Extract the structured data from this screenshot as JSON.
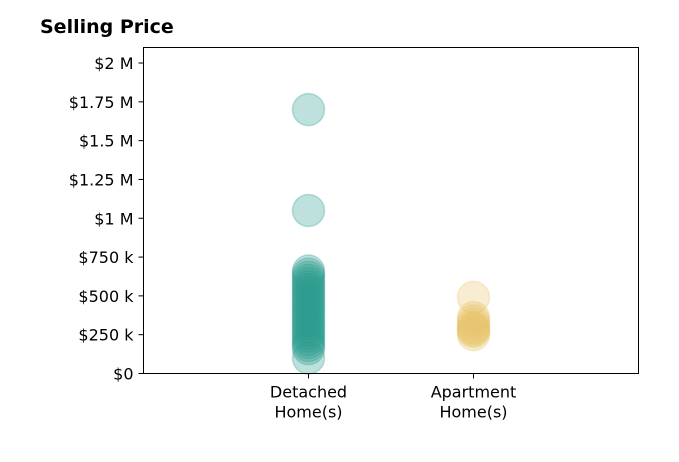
{
  "chart_data": {
    "type": "scatter",
    "title": "Selling Price",
    "xlabel": "",
    "ylabel": "",
    "categories": [
      [
        "Detached",
        "Home(s)"
      ],
      [
        "Apartment",
        "Home(s)"
      ]
    ],
    "x_range": [
      -1,
      2
    ],
    "ylim": [
      0,
      2100000
    ],
    "y_ticks": [
      {
        "value": 0,
        "label": "$0"
      },
      {
        "value": 250000,
        "label": "$250 k"
      },
      {
        "value": 500000,
        "label": "$500 k"
      },
      {
        "value": 750000,
        "label": "$750 k"
      },
      {
        "value": 1000000,
        "label": "$1 M"
      },
      {
        "value": 1250000,
        "label": "$1.25 M"
      },
      {
        "value": 1500000,
        "label": "$1.5 M"
      },
      {
        "value": 1750000,
        "label": "$1.75 M"
      },
      {
        "value": 2000000,
        "label": "$2 M"
      }
    ],
    "grid": false,
    "series": [
      {
        "color": "#2a9d8f",
        "category_index": 0,
        "values": [
          1700000,
          1050000,
          660000,
          640000,
          620000,
          600000,
          580000,
          560000,
          540000,
          520000,
          500000,
          480000,
          460000,
          440000,
          420000,
          400000,
          380000,
          360000,
          340000,
          320000,
          300000,
          280000,
          260000,
          240000,
          220000,
          200000,
          180000,
          160000,
          100000
        ]
      },
      {
        "color": "#e9c46a",
        "category_index": 1,
        "values": [
          490000,
          360000,
          340000,
          320000,
          300000,
          290000,
          280000,
          270000,
          250000
        ]
      }
    ]
  }
}
